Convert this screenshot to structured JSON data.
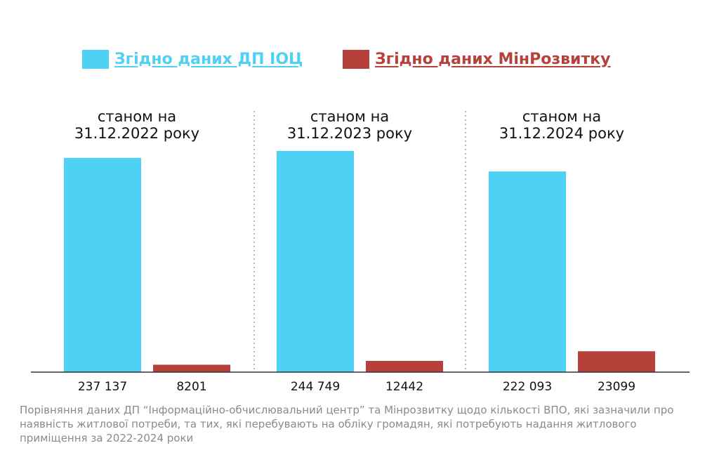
{
  "colors": {
    "series_1": "#4fd1f5",
    "series_2": "#b5413a",
    "axis": "#333333",
    "divider": "#888888",
    "text": "#111111"
  },
  "legend": [
    {
      "label": "Згідно даних ДП ІОЦ",
      "color": "#4fd1f5"
    },
    {
      "label": "Згідно даних МінРозвитку",
      "color": "#b5413a"
    }
  ],
  "chart_data": {
    "type": "bar",
    "categories": [
      "станом на\n31.12.2022 року",
      "станом на\n31.12.2023 року",
      "станом на\n31.12.2024 року"
    ],
    "series": [
      {
        "name": "Згідно даних ДП ІОЦ",
        "values": [
          237137,
          244749,
          222093
        ],
        "labels": [
          "237 137",
          "244 749",
          "222 093"
        ]
      },
      {
        "name": "Згідно даних МінРозвитку",
        "values": [
          8201,
          12442,
          23099
        ],
        "labels": [
          "8201",
          "12442",
          "23099"
        ]
      }
    ],
    "ylim": [
      0,
      244749
    ],
    "grid": false,
    "legend_position": "top",
    "title": "",
    "xlabel": "",
    "ylabel": ""
  },
  "caption": "Порівняння даних ДП “Інформаційно-обчислювальний центр” та Мінрозвитку щодо кількості ВПО, які зазначили про наявність житлової потреби, та тих, які перебувають на обліку громадян, які потребують надання житлового приміщення за 2022-2024 роки"
}
